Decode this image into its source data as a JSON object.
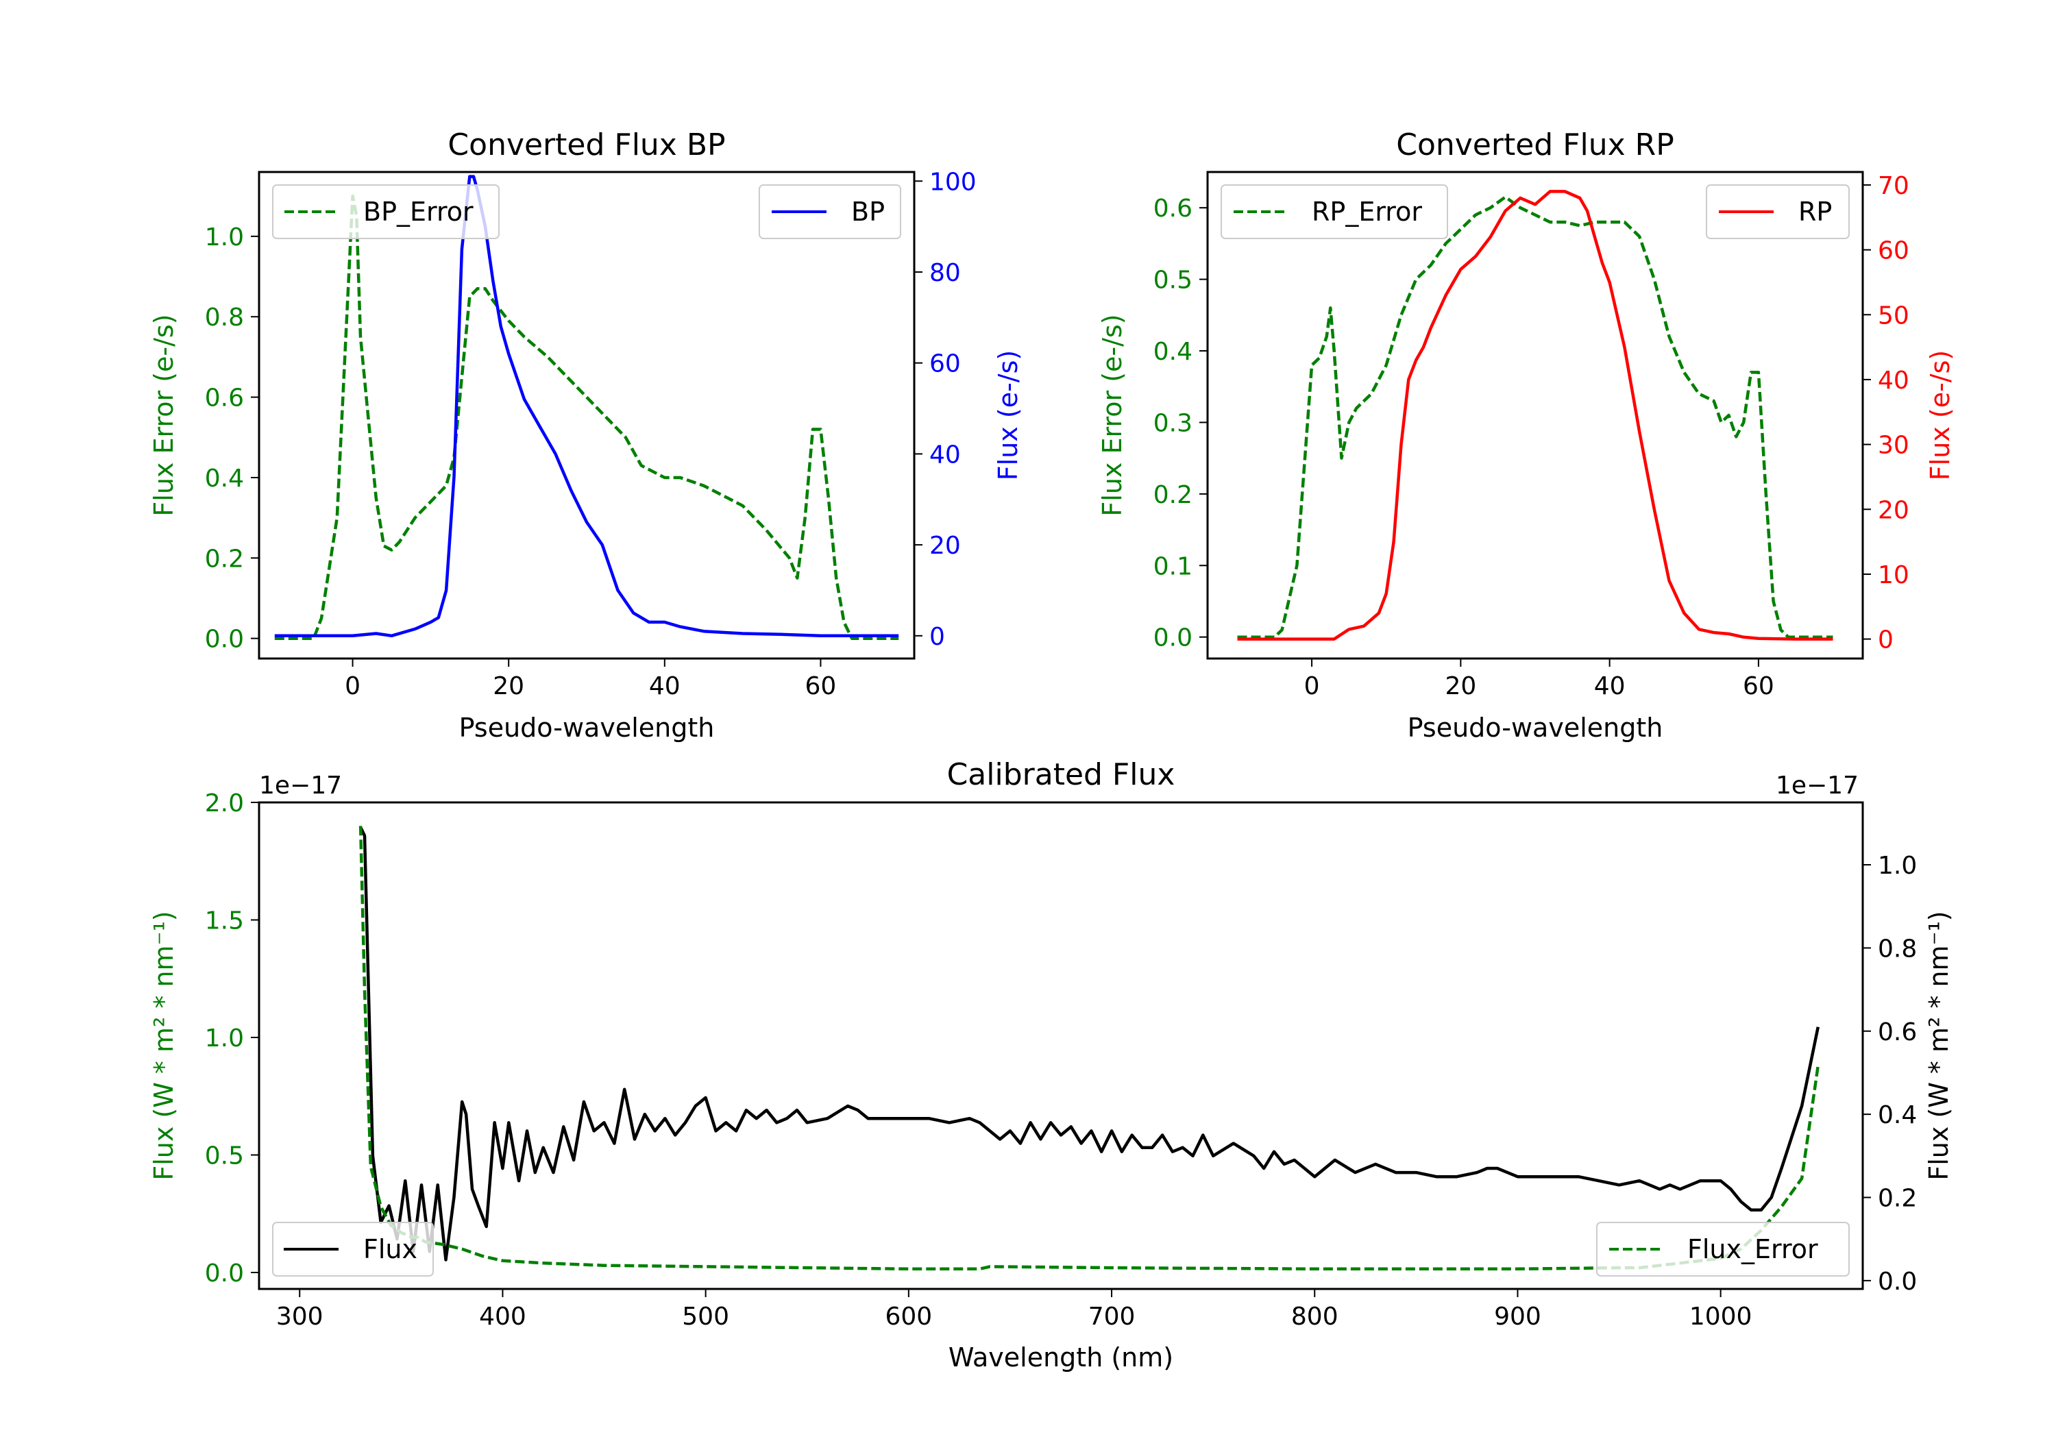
{
  "chart_data": [
    {
      "type": "line",
      "title": "Converted Flux BP",
      "xlabel": "Pseudo-wavelength",
      "xlim": [
        -12,
        72
      ],
      "xticks": [
        0,
        20,
        40,
        60
      ],
      "left_axis": {
        "label": "Flux Error (e-/s)",
        "color": "#008000",
        "ylim": [
          -0.05,
          1.16
        ],
        "ticks": [
          "0.0",
          "0.2",
          "0.4",
          "0.6",
          "0.8",
          "1.0"
        ]
      },
      "right_axis": {
        "label": "Flux (e-/s)",
        "color": "#0000ff",
        "ylim": [
          -5,
          102
        ],
        "ticks": [
          "0",
          "20",
          "40",
          "60",
          "80",
          "100"
        ]
      },
      "legend_left": "BP_Error",
      "legend_right": "BP",
      "series": [
        {
          "name": "BP_Error",
          "axis": "left",
          "color": "#008000",
          "style": "dashed",
          "x": [
            -10,
            -5,
            -4,
            -2,
            -1,
            0,
            0.5,
            1,
            2,
            3,
            4,
            5,
            6,
            8,
            10,
            12,
            13,
            14,
            15,
            16,
            17,
            18,
            20,
            22,
            25,
            27,
            30,
            33,
            35,
            37,
            40,
            42,
            45,
            48,
            50,
            53,
            56,
            57,
            58,
            59,
            60,
            61,
            62,
            63,
            64,
            65,
            66,
            68,
            70
          ],
          "y": [
            0.0,
            0.0,
            0.05,
            0.3,
            0.7,
            1.1,
            1.05,
            0.75,
            0.55,
            0.35,
            0.23,
            0.22,
            0.24,
            0.3,
            0.34,
            0.38,
            0.45,
            0.65,
            0.85,
            0.87,
            0.87,
            0.84,
            0.79,
            0.75,
            0.7,
            0.66,
            0.6,
            0.54,
            0.5,
            0.43,
            0.4,
            0.4,
            0.38,
            0.35,
            0.33,
            0.27,
            0.2,
            0.15,
            0.3,
            0.52,
            0.52,
            0.35,
            0.15,
            0.04,
            0.0,
            0.0,
            0.0,
            0.0,
            0.0
          ]
        },
        {
          "name": "BP",
          "axis": "right",
          "color": "#0000ff",
          "style": "solid",
          "x": [
            -10,
            -5,
            0,
            3,
            5,
            8,
            10,
            11,
            12,
            13,
            14,
            15,
            15.5,
            16,
            17,
            18,
            19,
            20,
            22,
            24,
            26,
            28,
            30,
            32,
            34,
            36,
            38,
            40,
            42,
            45,
            50,
            55,
            60,
            65,
            70
          ],
          "y": [
            0,
            0,
            0,
            0.5,
            0,
            1.5,
            3,
            4,
            10,
            35,
            85,
            101,
            101,
            98,
            90,
            78,
            68,
            62,
            52,
            46,
            40,
            32,
            25,
            20,
            10,
            5,
            3,
            3,
            2,
            1,
            0.5,
            0.3,
            0,
            0,
            0
          ]
        }
      ]
    },
    {
      "type": "line",
      "title": "Converted Flux RP",
      "xlabel": "Pseudo-wavelength",
      "xlim": [
        -14,
        74
      ],
      "xticks": [
        0,
        20,
        40,
        60
      ],
      "left_axis": {
        "label": "Flux Error (e-/s)",
        "color": "#008000",
        "ylim": [
          -0.03,
          0.65
        ],
        "ticks": [
          "0.0",
          "0.1",
          "0.2",
          "0.3",
          "0.4",
          "0.5",
          "0.6"
        ]
      },
      "right_axis": {
        "label": "Flux (e-/s)",
        "color": "#ff0000",
        "ylim": [
          -3,
          72
        ],
        "ticks": [
          "0",
          "10",
          "20",
          "30",
          "40",
          "50",
          "60",
          "70"
        ]
      },
      "legend_left": "RP_Error",
      "legend_right": "RP",
      "series": [
        {
          "name": "RP_Error",
          "axis": "left",
          "color": "#008000",
          "style": "dashed",
          "x": [
            -10,
            -5,
            -4,
            -2,
            0,
            1,
            2,
            2.5,
            3,
            4,
            5,
            6,
            8,
            10,
            12,
            14,
            16,
            18,
            20,
            22,
            24,
            26,
            28,
            30,
            32,
            34,
            36,
            38,
            40,
            42,
            44,
            46,
            48,
            50,
            52,
            54,
            55,
            56,
            57,
            58,
            59,
            60,
            61,
            62,
            63,
            64,
            65,
            66,
            68,
            70
          ],
          "y": [
            0.0,
            0.0,
            0.01,
            0.1,
            0.38,
            0.39,
            0.42,
            0.46,
            0.4,
            0.25,
            0.3,
            0.32,
            0.34,
            0.38,
            0.45,
            0.5,
            0.52,
            0.55,
            0.57,
            0.59,
            0.6,
            0.615,
            0.6,
            0.59,
            0.58,
            0.58,
            0.575,
            0.58,
            0.58,
            0.58,
            0.56,
            0.5,
            0.42,
            0.37,
            0.34,
            0.33,
            0.3,
            0.31,
            0.28,
            0.3,
            0.37,
            0.37,
            0.2,
            0.05,
            0.01,
            0.0,
            0.0,
            0.0,
            0.0,
            0.0
          ]
        },
        {
          "name": "RP",
          "axis": "right",
          "color": "#ff0000",
          "style": "solid",
          "x": [
            -10,
            -5,
            0,
            2,
            3,
            5,
            7,
            9,
            10,
            11,
            12,
            13,
            14,
            15,
            16,
            18,
            20,
            22,
            24,
            26,
            28,
            30,
            32,
            34,
            36,
            37,
            38,
            39,
            40,
            42,
            44,
            46,
            48,
            50,
            52,
            54,
            56,
            58,
            60,
            65,
            70
          ],
          "y": [
            0,
            0,
            0,
            0,
            0,
            1.5,
            2,
            4,
            7,
            15,
            30,
            40,
            43,
            45,
            48,
            53,
            57,
            59,
            62,
            66,
            68,
            67,
            69,
            69,
            68,
            66,
            62,
            58,
            55,
            45,
            32,
            20,
            9,
            4,
            1.5,
            1,
            0.8,
            0.3,
            0.1,
            0,
            0
          ]
        }
      ]
    },
    {
      "type": "line",
      "title": "Calibrated Flux",
      "xlabel": "Wavelength (nm)",
      "xlim": [
        280,
        1070
      ],
      "xticks": [
        300,
        400,
        500,
        600,
        700,
        800,
        900,
        1000
      ],
      "left_axis": {
        "label": "Flux (W * m² * nm⁻¹)",
        "color": "#008000",
        "ylim": [
          -0.07,
          2.0
        ],
        "ticks": [
          "0.0",
          "0.5",
          "1.0",
          "1.5",
          "2.0"
        ],
        "offset": "1e−17"
      },
      "right_axis": {
        "label": "Flux (W * m² * nm⁻¹)",
        "color": "#000000",
        "ylim": [
          -0.02,
          1.15
        ],
        "ticks": [
          "0.0",
          "0.2",
          "0.4",
          "0.6",
          "0.8",
          "1.0"
        ],
        "offset": "1e−17"
      },
      "legend_left": "Flux",
      "legend_right": "Flux_Error",
      "series": [
        {
          "name": "Flux",
          "axis": "right",
          "color": "#000000",
          "style": "solid",
          "x": [
            330,
            332,
            336,
            340,
            344,
            348,
            352,
            356,
            360,
            364,
            368,
            372,
            376,
            380,
            382,
            385,
            388,
            392,
            396,
            400,
            403,
            408,
            412,
            416,
            420,
            425,
            430,
            435,
            440,
            445,
            450,
            455,
            460,
            465,
            470,
            475,
            480,
            485,
            490,
            495,
            500,
            505,
            510,
            515,
            520,
            525,
            530,
            535,
            540,
            545,
            550,
            560,
            570,
            575,
            580,
            590,
            600,
            610,
            620,
            630,
            635,
            640,
            645,
            650,
            655,
            660,
            665,
            670,
            675,
            680,
            685,
            690,
            695,
            700,
            705,
            710,
            715,
            720,
            725,
            730,
            735,
            740,
            745,
            750,
            760,
            770,
            775,
            780,
            785,
            790,
            800,
            810,
            820,
            830,
            840,
            850,
            860,
            870,
            880,
            885,
            890,
            900,
            910,
            920,
            930,
            940,
            950,
            960,
            970,
            975,
            980,
            990,
            1000,
            1005,
            1010,
            1015,
            1020,
            1025,
            1030,
            1040,
            1048
          ],
          "y": [
            1.09,
            1.07,
            0.3,
            0.14,
            0.18,
            0.1,
            0.24,
            0.07,
            0.23,
            0.07,
            0.23,
            0.05,
            0.2,
            0.43,
            0.4,
            0.22,
            0.18,
            0.13,
            0.38,
            0.27,
            0.38,
            0.24,
            0.36,
            0.26,
            0.32,
            0.26,
            0.37,
            0.29,
            0.43,
            0.36,
            0.38,
            0.33,
            0.46,
            0.34,
            0.4,
            0.36,
            0.39,
            0.35,
            0.38,
            0.42,
            0.44,
            0.36,
            0.38,
            0.36,
            0.41,
            0.39,
            0.41,
            0.38,
            0.39,
            0.41,
            0.38,
            0.39,
            0.42,
            0.41,
            0.39,
            0.39,
            0.39,
            0.39,
            0.38,
            0.39,
            0.38,
            0.36,
            0.34,
            0.36,
            0.33,
            0.38,
            0.34,
            0.38,
            0.35,
            0.37,
            0.33,
            0.36,
            0.31,
            0.36,
            0.31,
            0.35,
            0.32,
            0.32,
            0.35,
            0.31,
            0.32,
            0.3,
            0.35,
            0.3,
            0.33,
            0.3,
            0.27,
            0.31,
            0.28,
            0.29,
            0.25,
            0.29,
            0.26,
            0.28,
            0.26,
            0.26,
            0.25,
            0.25,
            0.26,
            0.27,
            0.27,
            0.25,
            0.25,
            0.25,
            0.25,
            0.24,
            0.23,
            0.24,
            0.22,
            0.23,
            0.22,
            0.24,
            0.24,
            0.22,
            0.19,
            0.17,
            0.17,
            0.2,
            0.27,
            0.42,
            0.61
          ]
        },
        {
          "name": "Flux_Error",
          "axis": "left",
          "color": "#008000",
          "style": "dashed",
          "x": [
            330,
            332,
            335,
            340,
            345,
            350,
            355,
            358,
            362,
            370,
            380,
            390,
            400,
            420,
            450,
            500,
            550,
            600,
            635,
            640,
            700,
            800,
            900,
            950,
            960,
            980,
            1000,
            1010,
            1020,
            1030,
            1040,
            1048
          ],
          "y": [
            1.9,
            1.2,
            0.45,
            0.28,
            0.2,
            0.17,
            0.15,
            0.15,
            0.13,
            0.12,
            0.1,
            0.07,
            0.05,
            0.04,
            0.03,
            0.025,
            0.02,
            0.015,
            0.015,
            0.025,
            0.02,
            0.015,
            0.015,
            0.02,
            0.02,
            0.04,
            0.06,
            0.1,
            0.18,
            0.28,
            0.4,
            0.88
          ]
        }
      ]
    }
  ]
}
